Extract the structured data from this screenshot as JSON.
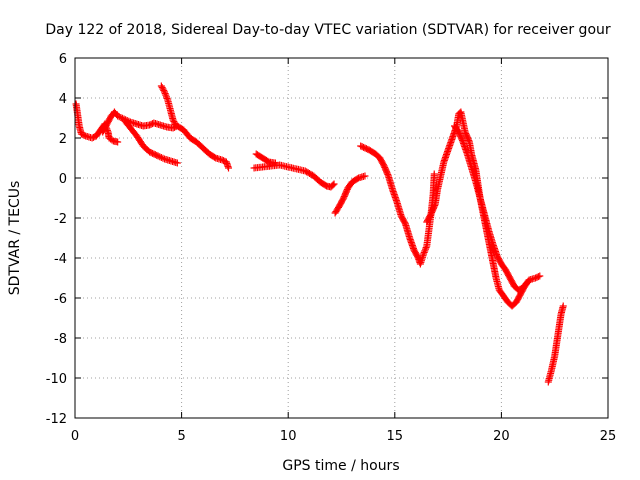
{
  "chart_data": {
    "type": "scatter",
    "title": "Day 122 of 2018, Sidereal Day-to-day VTEC variation (SDTVAR) for receiver gour",
    "xlabel": "GPS time / hours",
    "ylabel": "SDTVAR / TECUs",
    "xlim": [
      0,
      25
    ],
    "ylim": [
      -12,
      6
    ],
    "xticks": [
      0,
      5,
      10,
      15,
      20,
      25
    ],
    "yticks": [
      -12,
      -10,
      -8,
      -6,
      -4,
      -2,
      0,
      2,
      4,
      6
    ],
    "grid": true,
    "marker": "+",
    "color": "#ff0000",
    "series": [
      {
        "name": "seg1",
        "points": [
          [
            0.05,
            3.7
          ],
          [
            0.12,
            3.2
          ],
          [
            0.2,
            2.6
          ],
          [
            0.3,
            2.2
          ],
          [
            0.5,
            2.1
          ],
          [
            0.8,
            2.0
          ],
          [
            1.0,
            2.1
          ],
          [
            1.2,
            2.4
          ],
          [
            1.4,
            2.7
          ],
          [
            1.55,
            2.3
          ],
          [
            1.6,
            2.0
          ],
          [
            1.8,
            1.85
          ],
          [
            2.0,
            1.8
          ]
        ]
      },
      {
        "name": "seg2",
        "points": [
          [
            1.3,
            2.3
          ],
          [
            1.5,
            2.7
          ],
          [
            1.7,
            3.1
          ],
          [
            1.85,
            3.3
          ],
          [
            2.0,
            3.1
          ],
          [
            2.3,
            2.95
          ],
          [
            2.6,
            2.8
          ],
          [
            2.9,
            2.7
          ],
          [
            3.2,
            2.6
          ],
          [
            3.5,
            2.65
          ],
          [
            3.7,
            2.75
          ],
          [
            4.0,
            2.65
          ],
          [
            4.3,
            2.55
          ],
          [
            4.6,
            2.5
          ],
          [
            4.8,
            2.6
          ],
          [
            5.1,
            2.4
          ],
          [
            5.4,
            2.0
          ],
          [
            5.7,
            1.8
          ],
          [
            6.0,
            1.5
          ],
          [
            6.3,
            1.2
          ],
          [
            6.6,
            1.0
          ],
          [
            6.9,
            0.9
          ],
          [
            7.1,
            0.8
          ],
          [
            7.2,
            0.5
          ]
        ]
      },
      {
        "name": "seg3",
        "points": [
          [
            2.3,
            2.9
          ],
          [
            2.6,
            2.5
          ],
          [
            2.9,
            2.1
          ],
          [
            3.2,
            1.6
          ],
          [
            3.5,
            1.3
          ],
          [
            3.9,
            1.1
          ],
          [
            4.2,
            0.95
          ],
          [
            4.5,
            0.85
          ],
          [
            4.8,
            0.75
          ]
        ]
      },
      {
        "name": "seg4",
        "points": [
          [
            4.05,
            4.6
          ],
          [
            4.2,
            4.3
          ],
          [
            4.35,
            3.9
          ],
          [
            4.5,
            3.3
          ],
          [
            4.6,
            2.9
          ],
          [
            4.75,
            2.6
          ]
        ]
      },
      {
        "name": "seg5",
        "points": [
          [
            8.4,
            0.5
          ],
          [
            8.8,
            0.55
          ],
          [
            9.2,
            0.6
          ],
          [
            9.6,
            0.65
          ],
          [
            10.0,
            0.55
          ],
          [
            10.4,
            0.45
          ],
          [
            10.8,
            0.35
          ],
          [
            11.2,
            0.1
          ],
          [
            11.5,
            -0.2
          ],
          [
            11.8,
            -0.4
          ],
          [
            12.0,
            -0.45
          ],
          [
            12.15,
            -0.3
          ]
        ]
      },
      {
        "name": "seg6",
        "points": [
          [
            8.5,
            1.2
          ],
          [
            8.8,
            1.0
          ],
          [
            9.1,
            0.8
          ],
          [
            9.4,
            0.75
          ]
        ]
      },
      {
        "name": "seg7",
        "points": [
          [
            12.2,
            -1.75
          ],
          [
            12.4,
            -1.4
          ],
          [
            12.6,
            -1.0
          ],
          [
            12.8,
            -0.5
          ],
          [
            13.0,
            -0.2
          ],
          [
            13.3,
            0.0
          ],
          [
            13.6,
            0.1
          ]
        ]
      },
      {
        "name": "seg8",
        "points": [
          [
            13.4,
            1.6
          ],
          [
            13.8,
            1.4
          ],
          [
            14.1,
            1.2
          ],
          [
            14.3,
            1.0
          ],
          [
            14.5,
            0.6
          ],
          [
            14.7,
            0.1
          ],
          [
            14.9,
            -0.6
          ],
          [
            15.1,
            -1.2
          ],
          [
            15.3,
            -1.9
          ],
          [
            15.5,
            -2.3
          ],
          [
            15.7,
            -3.0
          ],
          [
            15.9,
            -3.6
          ],
          [
            16.1,
            -4.0
          ],
          [
            16.2,
            -4.3
          ],
          [
            16.35,
            -3.8
          ],
          [
            16.5,
            -3.4
          ],
          [
            16.6,
            -2.6
          ],
          [
            16.7,
            -1.8
          ],
          [
            16.8,
            -0.8
          ],
          [
            16.85,
            0.2
          ]
        ]
      },
      {
        "name": "seg9",
        "points": [
          [
            16.5,
            -2.2
          ],
          [
            16.7,
            -1.8
          ],
          [
            16.9,
            -1.3
          ],
          [
            17.0,
            -0.6
          ],
          [
            17.15,
            0.1
          ],
          [
            17.3,
            0.8
          ],
          [
            17.5,
            1.4
          ],
          [
            17.7,
            2.0
          ],
          [
            17.9,
            2.6
          ],
          [
            18.0,
            3.2
          ],
          [
            18.1,
            3.3
          ],
          [
            18.2,
            2.8
          ],
          [
            18.3,
            2.3
          ],
          [
            18.5,
            1.8
          ],
          [
            18.6,
            1.2
          ],
          [
            18.8,
            0.4
          ],
          [
            18.9,
            -0.3
          ],
          [
            19.0,
            -1.0
          ],
          [
            19.15,
            -1.8
          ],
          [
            19.3,
            -2.6
          ],
          [
            19.45,
            -3.4
          ],
          [
            19.6,
            -4.2
          ],
          [
            19.75,
            -5.0
          ],
          [
            19.9,
            -5.6
          ],
          [
            20.1,
            -5.9
          ],
          [
            20.3,
            -6.2
          ],
          [
            20.5,
            -6.4
          ],
          [
            20.7,
            -6.2
          ],
          [
            20.9,
            -5.8
          ],
          [
            21.1,
            -5.4
          ],
          [
            21.3,
            -5.1
          ],
          [
            21.6,
            -5.0
          ],
          [
            21.8,
            -4.9
          ]
        ]
      },
      {
        "name": "seg10",
        "points": [
          [
            17.8,
            2.6
          ],
          [
            18.0,
            2.3
          ],
          [
            18.2,
            1.8
          ],
          [
            18.4,
            1.2
          ],
          [
            18.6,
            0.5
          ],
          [
            18.8,
            -0.2
          ],
          [
            19.0,
            -1.0
          ],
          [
            19.2,
            -1.8
          ],
          [
            19.4,
            -2.6
          ],
          [
            19.6,
            -3.3
          ],
          [
            19.8,
            -3.9
          ],
          [
            20.0,
            -4.3
          ],
          [
            20.2,
            -4.6
          ],
          [
            20.4,
            -5.0
          ],
          [
            20.6,
            -5.4
          ],
          [
            20.8,
            -5.6
          ],
          [
            21.0,
            -5.5
          ],
          [
            21.3,
            -5.1
          ]
        ]
      },
      {
        "name": "seg11",
        "points": [
          [
            22.2,
            -10.2
          ],
          [
            22.35,
            -9.6
          ],
          [
            22.5,
            -8.9
          ],
          [
            22.6,
            -8.2
          ],
          [
            22.7,
            -7.5
          ],
          [
            22.8,
            -6.8
          ],
          [
            22.9,
            -6.4
          ]
        ]
      }
    ]
  }
}
